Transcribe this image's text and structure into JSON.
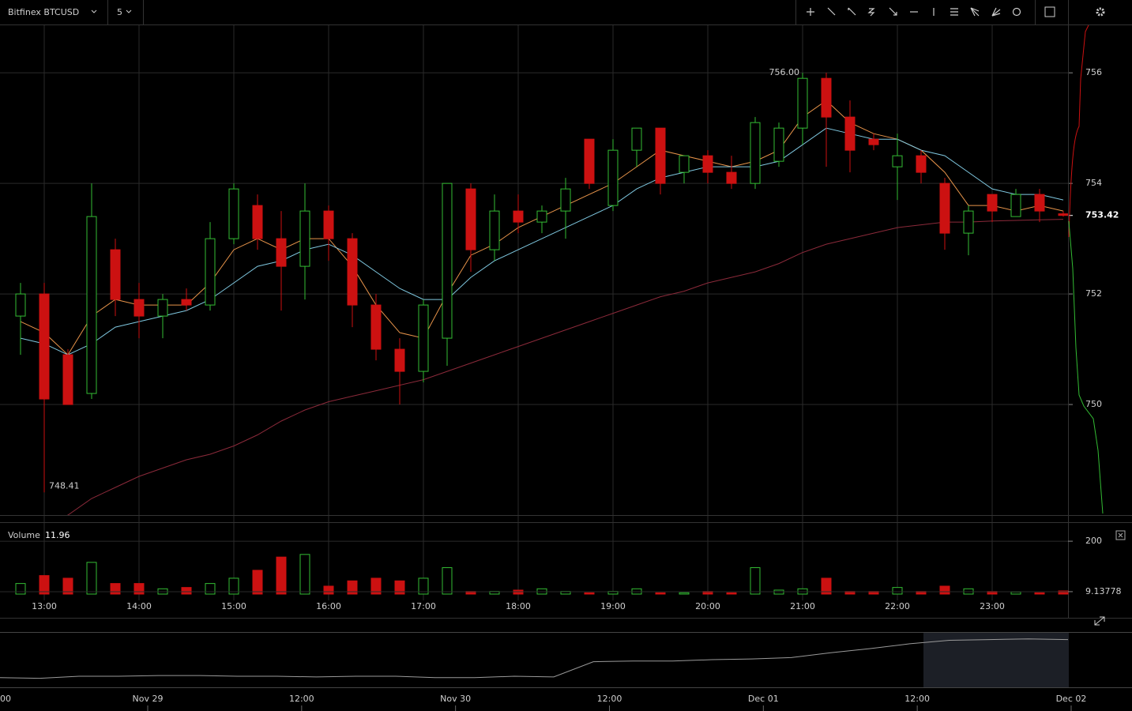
{
  "toolbar": {
    "symbol": "Bitfinex BTCUSD",
    "interval": "5"
  },
  "chart_data": {
    "type": "candlestick",
    "x": [
      765,
      780,
      795,
      810,
      825,
      840,
      855,
      870,
      885,
      900,
      915,
      930,
      945,
      960,
      975,
      990,
      1005,
      1020,
      1035,
      1050,
      1065,
      1080,
      1095,
      1110,
      1125,
      1140,
      1155,
      1170,
      1185,
      1200,
      1215,
      1230,
      1245,
      1260,
      1275,
      1290,
      1305,
      1320,
      1335,
      1350,
      1365,
      1380,
      1395,
      1410,
      1425
    ],
    "open": [
      751.6,
      752.0,
      750.9,
      750.2,
      752.8,
      751.9,
      751.6,
      751.9,
      751.8,
      753.0,
      753.6,
      753.0,
      752.5,
      753.5,
      753.0,
      751.8,
      751.0,
      750.6,
      751.2,
      753.9,
      752.8,
      753.5,
      753.3,
      753.5,
      754.8,
      753.6,
      754.6,
      755.0,
      754.2,
      754.5,
      754.2,
      754.0,
      754.4,
      755.0,
      755.9,
      755.2,
      754.8,
      754.3,
      754.5,
      754.0,
      753.1,
      753.8,
      753.4,
      753.8,
      753.45
    ],
    "high": [
      752.2,
      752.2,
      751.0,
      754.0,
      753.0,
      752.2,
      752.0,
      752.1,
      753.3,
      754.0,
      753.8,
      753.5,
      754.0,
      753.6,
      753.1,
      752.0,
      751.2,
      751.9,
      754.0,
      754.0,
      753.8,
      753.8,
      753.6,
      754.1,
      754.8,
      754.8,
      755.0,
      755.0,
      754.5,
      754.6,
      754.5,
      755.2,
      755.1,
      756.0,
      756.0,
      755.5,
      754.9,
      754.9,
      754.6,
      754.1,
      753.6,
      753.8,
      753.9,
      753.9,
      753.5
    ],
    "low": [
      750.9,
      748.41,
      750.0,
      750.1,
      751.6,
      751.2,
      751.2,
      751.7,
      751.7,
      752.9,
      752.8,
      751.7,
      751.9,
      752.6,
      751.4,
      750.8,
      750.0,
      750.4,
      750.7,
      752.4,
      752.6,
      753.1,
      753.1,
      753.0,
      753.9,
      753.5,
      754.3,
      753.8,
      754.0,
      754.0,
      753.9,
      753.9,
      754.3,
      754.7,
      754.3,
      754.2,
      754.6,
      753.7,
      754.0,
      752.8,
      752.7,
      753.3,
      753.4,
      753.3,
      753.4
    ],
    "close": [
      752.0,
      750.1,
      750.0,
      753.4,
      751.9,
      751.6,
      751.9,
      751.8,
      753.0,
      753.9,
      753.0,
      752.5,
      753.5,
      753.0,
      751.8,
      751.0,
      750.6,
      751.8,
      754.0,
      752.8,
      753.5,
      753.3,
      753.5,
      753.9,
      754.0,
      754.6,
      755.0,
      754.0,
      754.5,
      754.2,
      754.0,
      755.1,
      755.0,
      755.9,
      755.2,
      754.6,
      754.7,
      754.5,
      754.2,
      753.1,
      753.5,
      753.5,
      753.8,
      753.5,
      753.42
    ],
    "up_color": "#33bb33",
    "down_color": "#cc1111",
    "high_label": "756.00",
    "low_label": "748.41",
    "ma": [
      {
        "color": "#e8944a",
        "values": [
          751.5,
          751.3,
          750.9,
          751.6,
          751.9,
          751.8,
          751.8,
          751.8,
          752.2,
          752.8,
          753.0,
          752.8,
          753.0,
          753.0,
          752.5,
          751.8,
          751.3,
          751.2,
          752.0,
          752.7,
          752.9,
          753.2,
          753.4,
          753.6,
          753.8,
          754.0,
          754.3,
          754.6,
          754.5,
          754.4,
          754.3,
          754.4,
          754.6,
          755.2,
          755.5,
          755.1,
          754.9,
          754.8,
          754.6,
          754.2,
          753.6,
          753.6,
          753.5,
          753.6,
          753.5
        ]
      },
      {
        "color": "#7fc8e0",
        "values": [
          751.2,
          751.1,
          750.9,
          751.1,
          751.4,
          751.5,
          751.6,
          751.7,
          751.9,
          752.2,
          752.5,
          752.6,
          752.8,
          752.9,
          752.7,
          752.4,
          752.1,
          751.9,
          751.9,
          752.3,
          752.6,
          752.8,
          753.0,
          753.2,
          753.4,
          753.6,
          753.9,
          754.1,
          754.2,
          754.3,
          754.3,
          754.3,
          754.4,
          754.7,
          755.0,
          754.9,
          754.8,
          754.8,
          754.6,
          754.5,
          754.2,
          753.9,
          753.8,
          753.8,
          753.7
        ]
      },
      {
        "color": "#8b2a3a",
        "values": [
          747.6,
          747.8,
          748.0,
          748.3,
          748.5,
          748.7,
          748.85,
          749.0,
          749.1,
          749.25,
          749.45,
          749.7,
          749.9,
          750.05,
          750.15,
          750.25,
          750.35,
          750.45,
          750.6,
          750.75,
          750.9,
          751.05,
          751.2,
          751.35,
          751.5,
          751.65,
          751.8,
          751.95,
          752.05,
          752.2,
          752.3,
          752.4,
          752.55,
          752.75,
          752.9,
          753.0,
          753.1,
          753.2,
          753.25,
          753.3,
          753.3,
          753.32,
          753.33,
          753.34,
          753.35
        ]
      }
    ],
    "xlim": [
      752,
      1428
    ],
    "xticks": [
      {
        "value": 780,
        "label": "13:00"
      },
      {
        "value": 840,
        "label": "14:00"
      },
      {
        "value": 900,
        "label": "15:00"
      },
      {
        "value": 960,
        "label": "16:00"
      },
      {
        "value": 1020,
        "label": "17:00"
      },
      {
        "value": 1080,
        "label": "18:00"
      },
      {
        "value": 1140,
        "label": "19:00"
      },
      {
        "value": 1200,
        "label": "20:00"
      },
      {
        "value": 1260,
        "label": "21:00"
      },
      {
        "value": 1320,
        "label": "22:00"
      },
      {
        "value": 1380,
        "label": "23:00"
      }
    ],
    "ylim": [
      748,
      756.86
    ],
    "yticks": [
      750,
      752,
      754,
      756
    ],
    "grid": true,
    "volume": {
      "label": "Volume",
      "values": [
        40,
        70,
        60,
        120,
        40,
        40,
        20,
        25,
        40,
        60,
        90,
        140,
        150,
        30,
        50,
        60,
        50,
        60,
        100,
        10,
        10,
        15,
        20,
        10,
        5,
        10,
        20,
        5,
        5,
        10,
        5,
        100,
        15,
        20,
        60,
        10,
        10,
        25,
        10,
        30,
        20,
        10,
        8,
        5,
        11.96
      ],
      "ylim": [
        0,
        269
      ],
      "yticks": [
        200,
        9.13778
      ]
    },
    "navigator": {
      "color": "#9a9a9a",
      "values": [
        748.4,
        748.3,
        748.6,
        748.6,
        748.7,
        748.7,
        748.6,
        748.6,
        748.5,
        748.6,
        748.6,
        748.4,
        748.4,
        748.6,
        748.5,
        750.7,
        750.8,
        750.8,
        751.0,
        751.1,
        751.3,
        752.0,
        752.6,
        753.3,
        753.8,
        753.9,
        754.0,
        753.9
      ],
      "ylim": [
        747,
        755
      ],
      "labels": [
        "00",
        "Nov 29",
        "12:00",
        "Nov 30",
        "12:00",
        "Dec 01",
        "12:00",
        "Dec 02"
      ]
    }
  }
}
